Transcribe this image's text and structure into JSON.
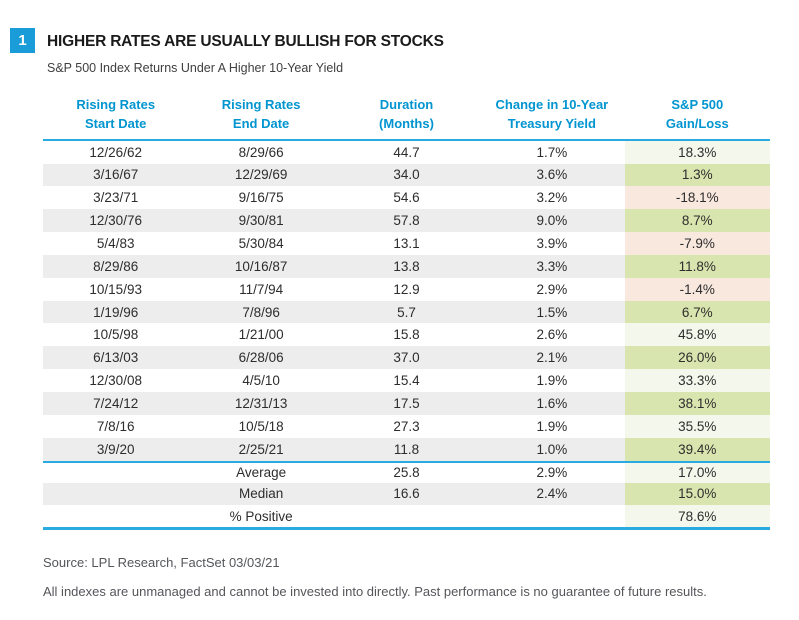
{
  "colors": {
    "accent_blue": "#199cd8",
    "header_text_blue": "#0095d0",
    "rule_cyan": "#29abe2",
    "stripe_gray": "#ededed",
    "gain_green_light": "#f3f7ec",
    "gain_green_med": "#d9e5af",
    "loss_pink": "#f9e8de",
    "body_text": "#2d2d2d",
    "footer_text": "#54565a"
  },
  "chart_data": {
    "type": "table",
    "figure_number": "1",
    "title": "HIGHER RATES ARE USUALLY BULLISH FOR STOCKS",
    "subtitle": "S&P 500 Index Returns Under A Higher 10-Year Yield",
    "columns": [
      [
        "Rising Rates",
        "Start Date"
      ],
      [
        "Rising Rates",
        "End Date"
      ],
      [
        "Duration",
        "(Months)"
      ],
      [
        "Change in 10-Year",
        "Treasury Yield"
      ],
      [
        "S&P 500",
        "Gain/Loss"
      ]
    ],
    "rows": [
      [
        "12/26/62",
        "8/29/66",
        "44.7",
        "1.7%",
        "18.3%"
      ],
      [
        "3/16/67",
        "12/29/69",
        "34.0",
        "3.6%",
        "1.3%"
      ],
      [
        "3/23/71",
        "9/16/75",
        "54.6",
        "3.2%",
        "-18.1%"
      ],
      [
        "12/30/76",
        "9/30/81",
        "57.8",
        "9.0%",
        "8.7%"
      ],
      [
        "5/4/83",
        "5/30/84",
        "13.1",
        "3.9%",
        "-7.9%"
      ],
      [
        "8/29/86",
        "10/16/87",
        "13.8",
        "3.3%",
        "11.8%"
      ],
      [
        "10/15/93",
        "11/7/94",
        "12.9",
        "2.9%",
        "-1.4%"
      ],
      [
        "1/19/96",
        "7/8/96",
        "5.7",
        "1.5%",
        "6.7%"
      ],
      [
        "10/5/98",
        "1/21/00",
        "15.8",
        "2.6%",
        "45.8%"
      ],
      [
        "6/13/03",
        "6/28/06",
        "37.0",
        "2.1%",
        "26.0%"
      ],
      [
        "12/30/08",
        "4/5/10",
        "15.4",
        "1.9%",
        "33.3%"
      ],
      [
        "7/24/12",
        "12/31/13",
        "17.5",
        "1.6%",
        "38.1%"
      ],
      [
        "7/8/16",
        "10/5/18",
        "27.3",
        "1.9%",
        "35.5%"
      ],
      [
        "3/9/20",
        "2/25/21",
        "11.8",
        "1.0%",
        "39.4%"
      ]
    ],
    "summary_rows": [
      [
        "",
        "Average",
        "25.8",
        "2.9%",
        "17.0%"
      ],
      [
        "",
        "Median",
        "16.6",
        "2.4%",
        "15.0%"
      ],
      [
        "",
        "% Positive",
        "",
        "",
        "78.6%"
      ]
    ],
    "source": "Source: LPL Research, FactSet 03/03/21",
    "disclaimer": "All indexes are unmanaged and cannot be invested into directly. Past performance is no guarantee of future results."
  }
}
